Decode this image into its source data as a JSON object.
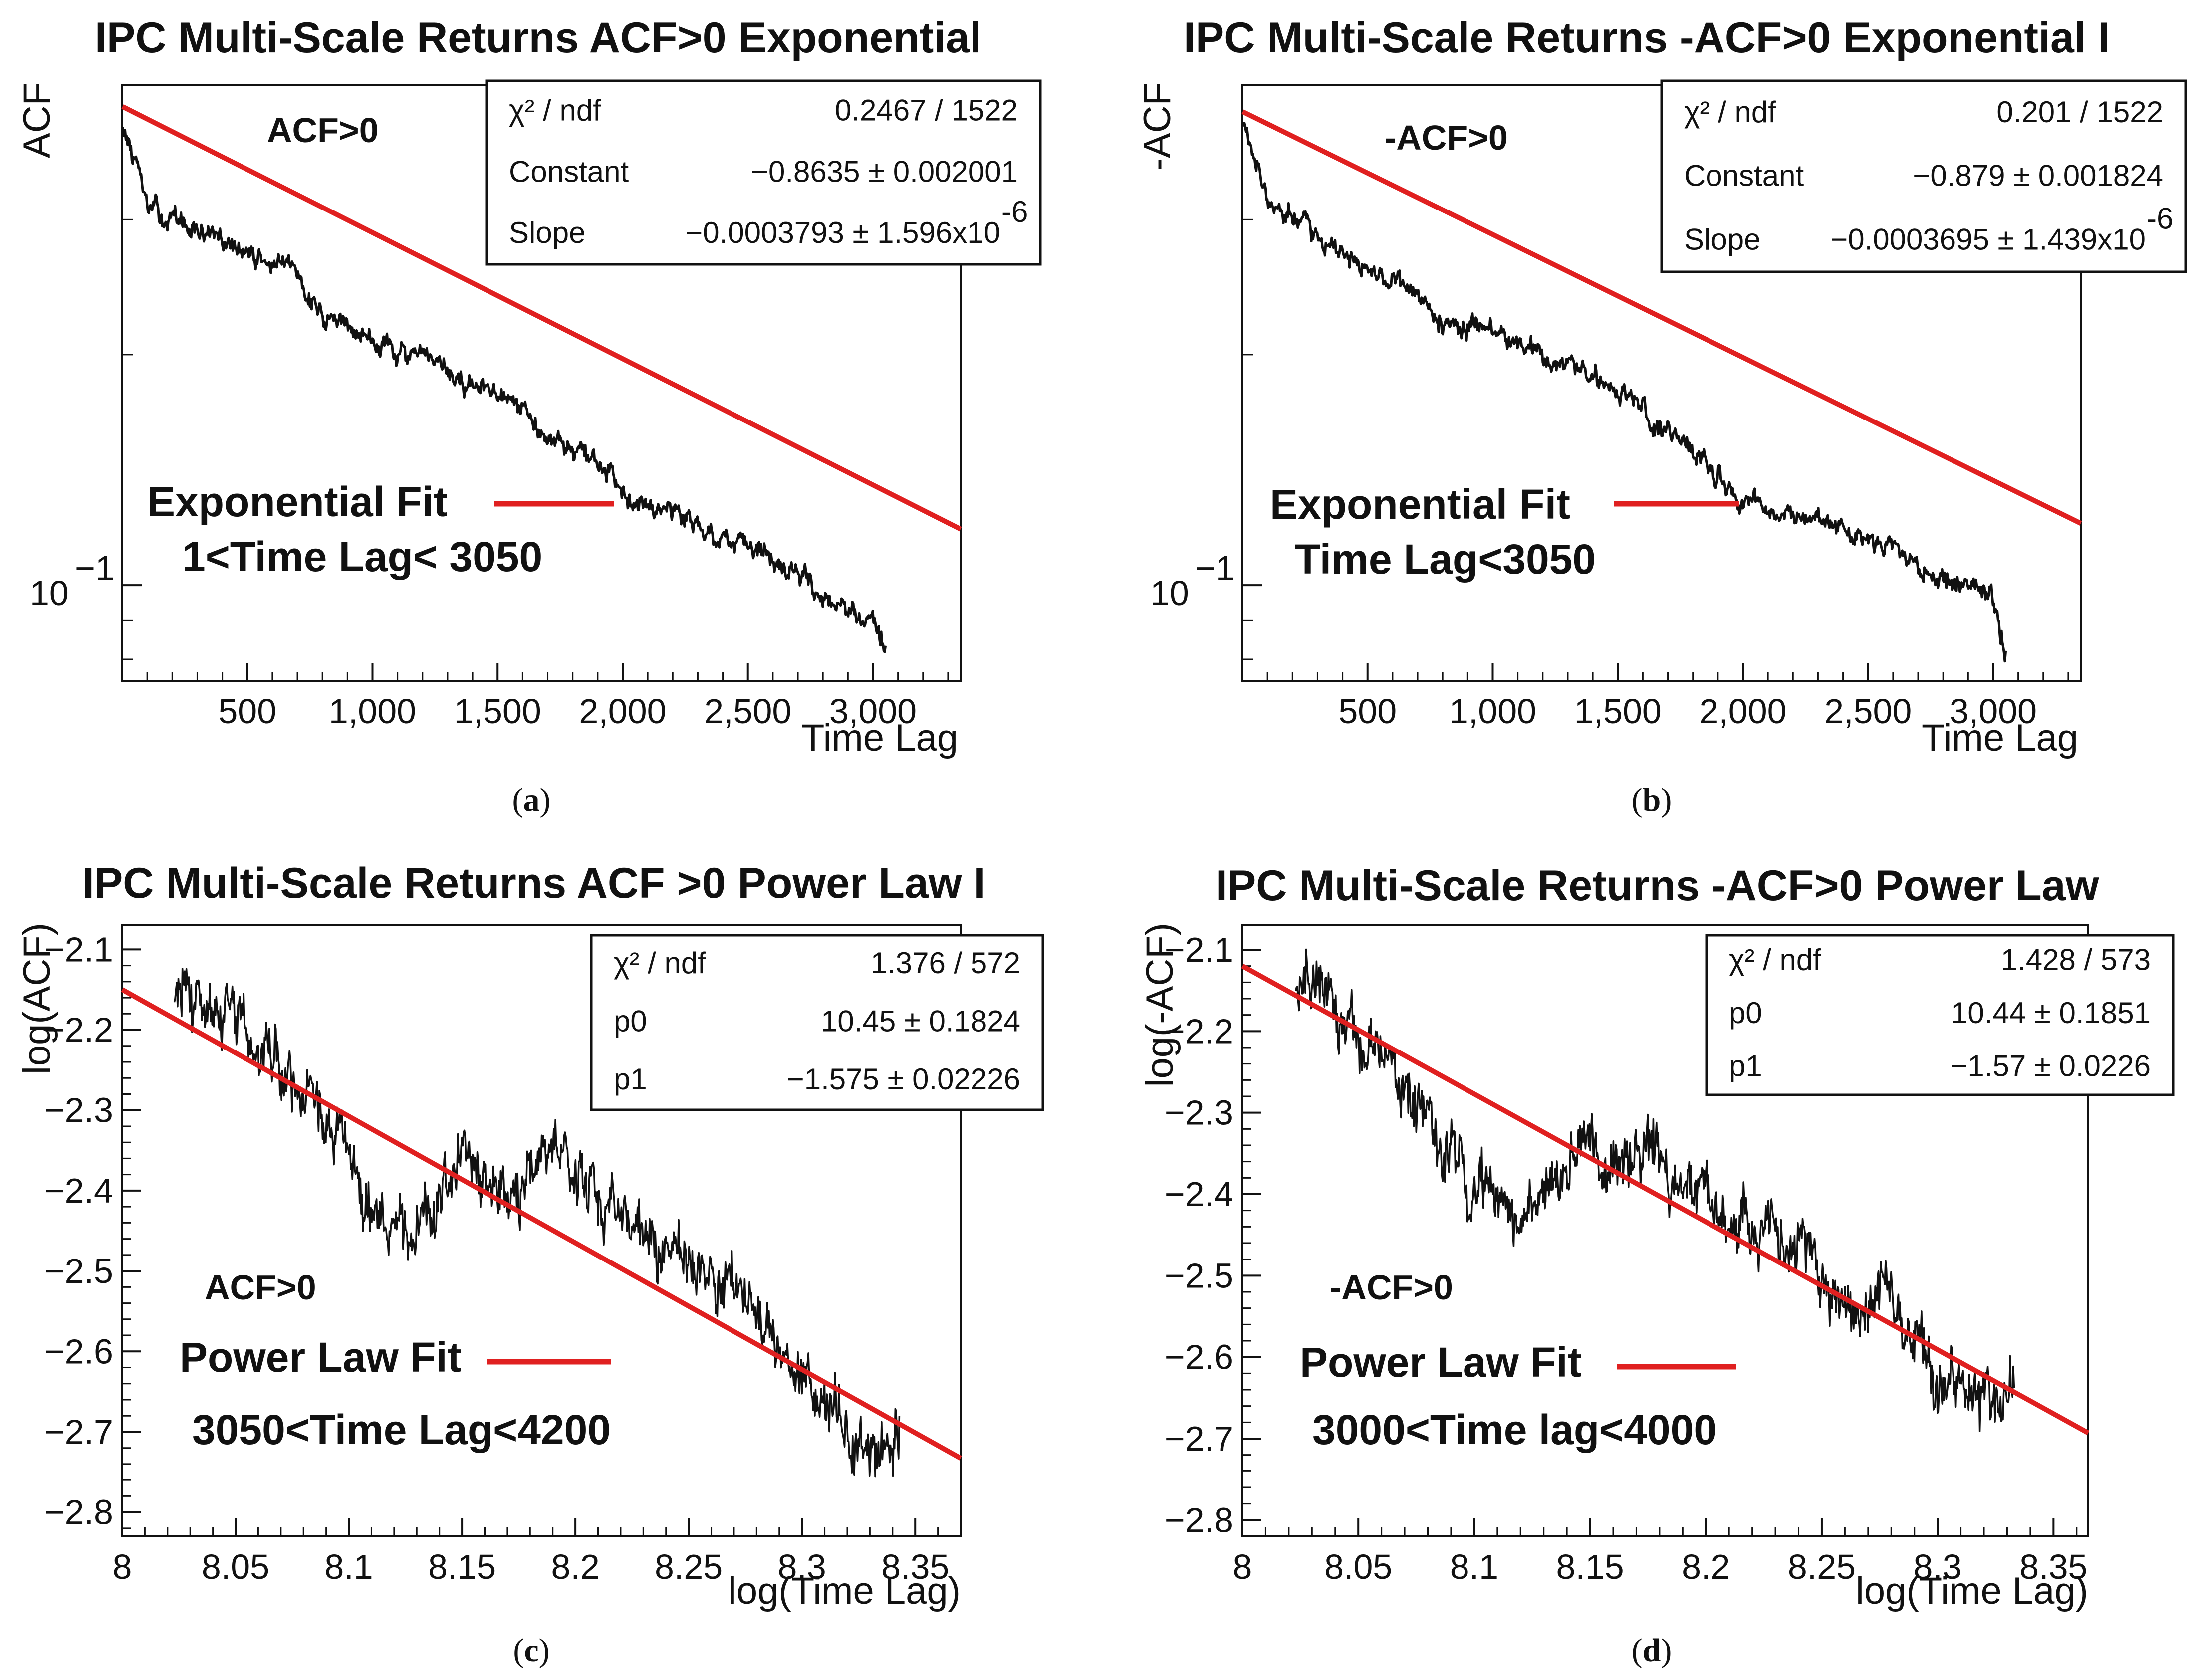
{
  "chart_data": [
    {
      "type": "line",
      "id": "a",
      "title": "IPC Multi-Scale Returns ACF>0 Exponential",
      "xlabel": "Time Lag",
      "ylabel": "ACF",
      "yscale": "log",
      "xlim": [
        0,
        3350
      ],
      "ylim": [
        0.075,
        0.45
      ],
      "x_ticks": [
        500,
        1000,
        1500,
        2000,
        2500,
        3000
      ],
      "x_tick_labels": [
        "500",
        "1,000",
        "1,500",
        "2,000",
        "2,500",
        "3,000"
      ],
      "y_major_tick_label": "10",
      "y_major_tick_exp": "−1",
      "y_major_tick_value": 0.1,
      "y_minor_ticks": [
        0.2,
        0.3
      ],
      "data_series": {
        "name": "ACF>0",
        "x_range": [
          1,
          3050
        ],
        "approx_values": [
          [
            1,
            0.4
          ],
          [
            100,
            0.31
          ],
          [
            500,
            0.27
          ],
          [
            700,
            0.255
          ],
          [
            800,
            0.225
          ],
          [
            1000,
            0.21
          ],
          [
            1500,
            0.175
          ],
          [
            2000,
            0.135
          ],
          [
            2500,
            0.11
          ],
          [
            3000,
            0.09
          ],
          [
            3050,
            0.082
          ]
        ]
      },
      "fit": {
        "name": "Exponential Fit",
        "color": "#e02020",
        "constant": -0.8635,
        "slope": -0.0003793,
        "x_range": [
          1,
          3350
        ]
      },
      "stats": {
        "chi2_label": "χ² / ndf",
        "chi2_value": "0.2467 / 1522",
        "p0_label": "Constant",
        "p0_value": "−0.8635 ± 0.002001",
        "p1_label": "Slope",
        "p1_value": "−0.0003793 ± 1.596x10",
        "p1_exp": "-6"
      },
      "annotations": {
        "series_label": "ACF>0",
        "fit_label": "Exponential Fit",
        "range_label": "1<Time Lag< 3050"
      },
      "caption": "a"
    },
    {
      "type": "line",
      "id": "b",
      "title": "IPC Multi-Scale Returns -ACF>0 Exponential I",
      "xlabel": "Time Lag",
      "ylabel": "-ACF",
      "yscale": "log",
      "xlim": [
        0,
        3350
      ],
      "ylim": [
        0.075,
        0.45
      ],
      "x_ticks": [
        500,
        1000,
        1500,
        2000,
        2500,
        3000
      ],
      "x_tick_labels": [
        "500",
        "1,000",
        "1,500",
        "2,000",
        "2,500",
        "3,000"
      ],
      "y_major_tick_label": "10",
      "y_major_tick_exp": "−1",
      "y_major_tick_value": 0.1,
      "y_minor_ticks": [
        0.2,
        0.3
      ],
      "data_series": {
        "name": "-ACF>0",
        "x_range": [
          1,
          3050
        ],
        "approx_values": [
          [
            1,
            0.4
          ],
          [
            100,
            0.32
          ],
          [
            500,
            0.26
          ],
          [
            700,
            0.24
          ],
          [
            800,
            0.22
          ],
          [
            1000,
            0.215
          ],
          [
            1500,
            0.18
          ],
          [
            1900,
            0.14
          ],
          [
            2000,
            0.13
          ],
          [
            2500,
            0.115
          ],
          [
            3000,
            0.095
          ],
          [
            3050,
            0.083
          ]
        ]
      },
      "fit": {
        "name": "Exponential Fit",
        "color": "#e02020",
        "constant": -0.879,
        "slope": -0.0003695,
        "x_range": [
          1,
          3350
        ]
      },
      "stats": {
        "chi2_label": "χ² / ndf",
        "chi2_value": "0.201 / 1522",
        "p0_label": "Constant",
        "p0_value": "−0.879 ± 0.001824",
        "p1_label": "Slope",
        "p1_value": "−0.0003695 ± 1.439x10",
        "p1_exp": "-6"
      },
      "annotations": {
        "series_label": "-ACF>0",
        "fit_label": "Exponential Fit",
        "range_label": "Time Lag<3050"
      },
      "caption": "b"
    },
    {
      "type": "line",
      "id": "c",
      "title": "IPC Multi-Scale Returns ACF >0 Power Law I",
      "xlabel": "log(Time Lag)",
      "ylabel": "log(ACF)",
      "xlim": [
        8.0,
        8.37
      ],
      "ylim": [
        -2.83,
        -2.07
      ],
      "x_ticks": [
        8,
        8.05,
        8.1,
        8.15,
        8.2,
        8.25,
        8.3,
        8.35
      ],
      "x_tick_labels": [
        "8",
        "8.05",
        "8.1",
        "8.15",
        "8.2",
        "8.25",
        "8.3",
        "8.35"
      ],
      "y_ticks": [
        -2.1,
        -2.2,
        -2.3,
        -2.4,
        -2.5,
        -2.6,
        -2.7,
        -2.8
      ],
      "y_tick_labels": [
        "−2.1",
        "−2.2",
        "−2.3",
        "−2.4",
        "−2.5",
        "−2.6",
        "−2.7",
        "−2.8"
      ],
      "data_series": {
        "name": "ACF>0",
        "x_range": [
          8.023,
          8.343
        ],
        "approx_values": [
          [
            8.023,
            -2.14
          ],
          [
            8.05,
            -2.2
          ],
          [
            8.08,
            -2.27
          ],
          [
            8.1,
            -2.35
          ],
          [
            8.11,
            -2.42
          ],
          [
            8.13,
            -2.44
          ],
          [
            8.15,
            -2.37
          ],
          [
            8.17,
            -2.42
          ],
          [
            8.19,
            -2.33
          ],
          [
            8.2,
            -2.4
          ],
          [
            8.22,
            -2.42
          ],
          [
            8.24,
            -2.47
          ],
          [
            8.26,
            -2.52
          ],
          [
            8.28,
            -2.55
          ],
          [
            8.3,
            -2.63
          ],
          [
            8.32,
            -2.7
          ],
          [
            8.343,
            -2.72
          ]
        ]
      },
      "fit": {
        "name": "Power Law Fit",
        "color": "#e02020",
        "p0": 10.45,
        "p1": -1.575,
        "x_range": [
          8.0,
          8.37
        ]
      },
      "stats": {
        "chi2_label": "χ² / ndf",
        "chi2_value": "1.376 / 572",
        "p0_label": "p0",
        "p0_value": "10.45 ± 0.1824",
        "p1_label": "p1",
        "p1_value": "−1.575 ± 0.02226",
        "p1_exp": ""
      },
      "annotations": {
        "series_label": "ACF>0",
        "fit_label": "Power Law Fit",
        "range_label": "3050<Time Lag<4200"
      },
      "caption": "c"
    },
    {
      "type": "line",
      "id": "d",
      "title": "IPC Multi-Scale Returns -ACF>0 Power Law",
      "xlabel": "log(Time Lag)",
      "ylabel": "log(-ACF)",
      "xlim": [
        8.0,
        8.365
      ],
      "ylim": [
        -2.82,
        -2.07
      ],
      "x_ticks": [
        8,
        8.05,
        8.1,
        8.15,
        8.2,
        8.25,
        8.3,
        8.35
      ],
      "x_tick_labels": [
        "8",
        "8.05",
        "8.1",
        "8.15",
        "8.2",
        "8.25",
        "8.3",
        "8.35"
      ],
      "y_ticks": [
        -2.1,
        -2.2,
        -2.3,
        -2.4,
        -2.5,
        -2.6,
        -2.7,
        -2.8
      ],
      "y_tick_labels": [
        "−2.1",
        "−2.2",
        "−2.3",
        "−2.4",
        "−2.5",
        "−2.6",
        "−2.7",
        "−2.8"
      ],
      "data_series": {
        "name": "-ACF>0",
        "x_range": [
          8.023,
          8.333
        ],
        "approx_values": [
          [
            8.023,
            -2.14
          ],
          [
            8.05,
            -2.2
          ],
          [
            8.08,
            -2.3
          ],
          [
            8.1,
            -2.38
          ],
          [
            8.12,
            -2.42
          ],
          [
            8.15,
            -2.33
          ],
          [
            8.17,
            -2.35
          ],
          [
            8.2,
            -2.4
          ],
          [
            8.22,
            -2.45
          ],
          [
            8.24,
            -2.47
          ],
          [
            8.26,
            -2.56
          ],
          [
            8.28,
            -2.52
          ],
          [
            8.3,
            -2.62
          ],
          [
            8.32,
            -2.66
          ],
          [
            8.333,
            -2.65
          ]
        ]
      },
      "fit": {
        "name": "Power Law Fit",
        "color": "#e02020",
        "p0": 10.44,
        "p1": -1.57,
        "x_range": [
          8.0,
          8.365
        ]
      },
      "stats": {
        "chi2_label": "χ² / ndf",
        "chi2_value": "1.428 / 573",
        "p0_label": "p0",
        "p0_value": "10.44 ± 0.1851",
        "p1_label": "p1",
        "p1_value": "−1.57 ± 0.0226",
        "p1_exp": ""
      },
      "annotations": {
        "series_label": "-ACF>0",
        "fit_label": "Power Law Fit",
        "range_label": "3000<Time lag<4000"
      },
      "caption": "d"
    }
  ]
}
